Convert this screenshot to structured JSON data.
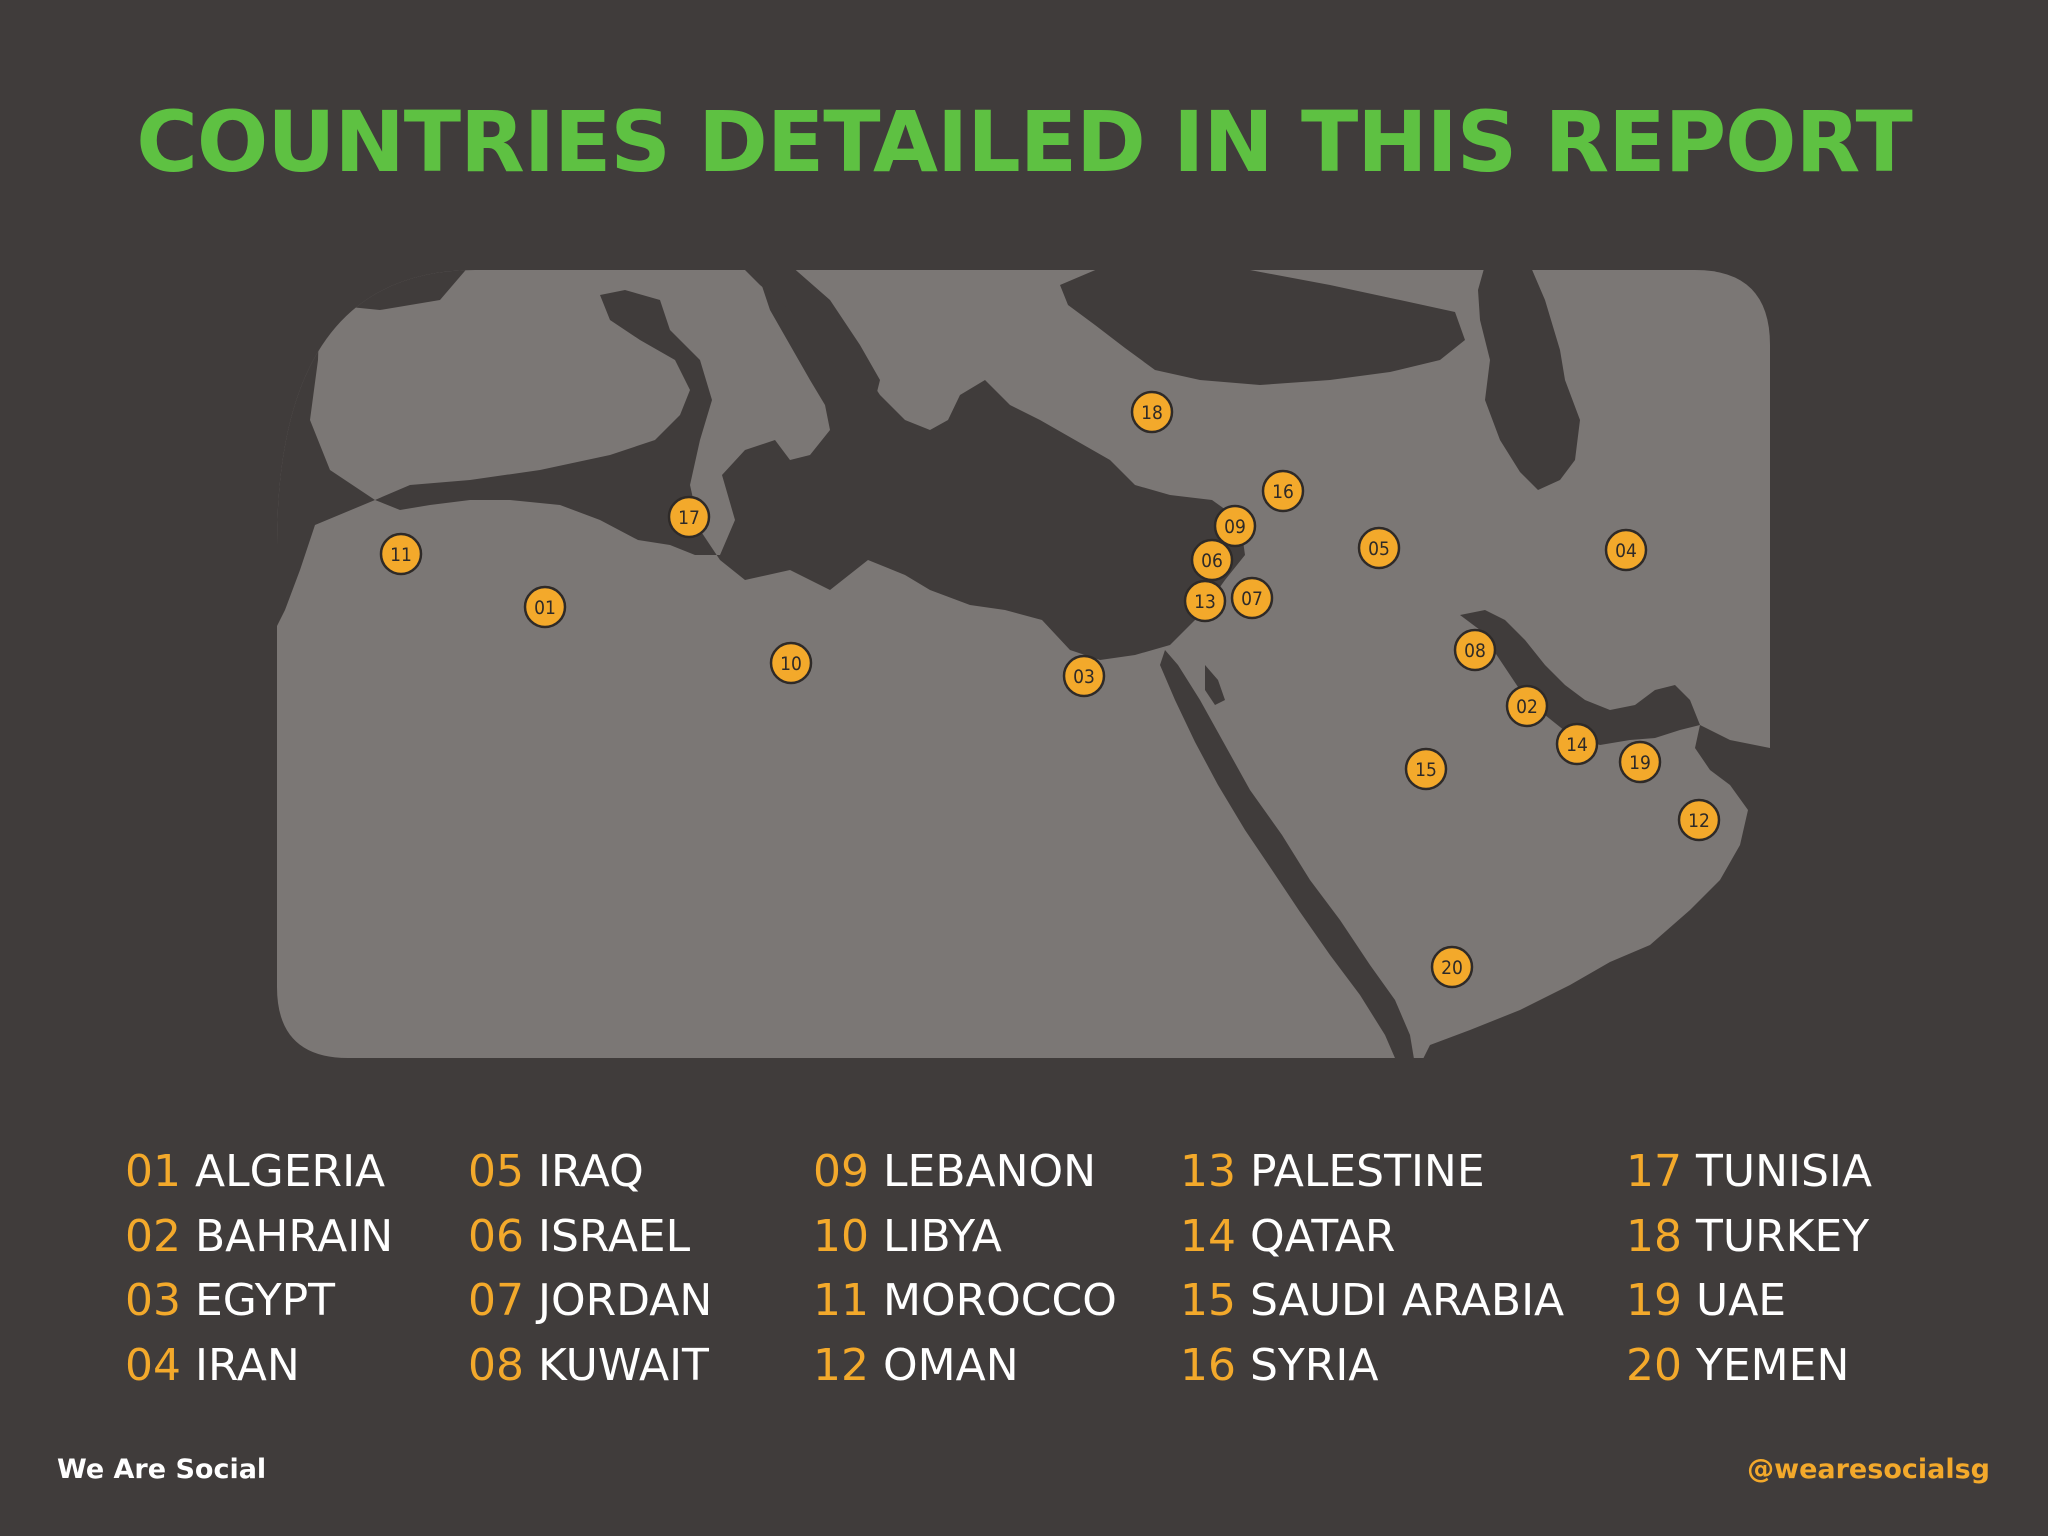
{
  "title": "COUNTRIES DETAILED IN THIS REPORT",
  "colors": {
    "background": "#403c3b",
    "land": "#7b7775",
    "water": "#403c3b",
    "title": "#5ec142",
    "accent": "#f3a92b",
    "text": "#ffffff",
    "marker_text": "#2e2a28"
  },
  "countries": [
    {
      "num": "01",
      "name": "ALGERIA"
    },
    {
      "num": "02",
      "name": "BAHRAIN"
    },
    {
      "num": "03",
      "name": "EGYPT"
    },
    {
      "num": "04",
      "name": "IRAN"
    },
    {
      "num": "05",
      "name": "IRAQ"
    },
    {
      "num": "06",
      "name": "ISRAEL"
    },
    {
      "num": "07",
      "name": "JORDAN"
    },
    {
      "num": "08",
      "name": "KUWAIT"
    },
    {
      "num": "09",
      "name": "LEBANON"
    },
    {
      "num": "10",
      "name": "LIBYA"
    },
    {
      "num": "11",
      "name": "MOROCCO"
    },
    {
      "num": "12",
      "name": "OMAN"
    },
    {
      "num": "13",
      "name": "PALESTINE"
    },
    {
      "num": "14",
      "name": "QATAR"
    },
    {
      "num": "15",
      "name": "SAUDI ARABIA"
    },
    {
      "num": "16",
      "name": "SYRIA"
    },
    {
      "num": "17",
      "name": "TUNISIA"
    },
    {
      "num": "18",
      "name": "TURKEY"
    },
    {
      "num": "19",
      "name": "UAE"
    },
    {
      "num": "20",
      "name": "YEMEN"
    }
  ],
  "footer": {
    "brand": "We Are Social",
    "handle": "@wearesocialsg"
  }
}
